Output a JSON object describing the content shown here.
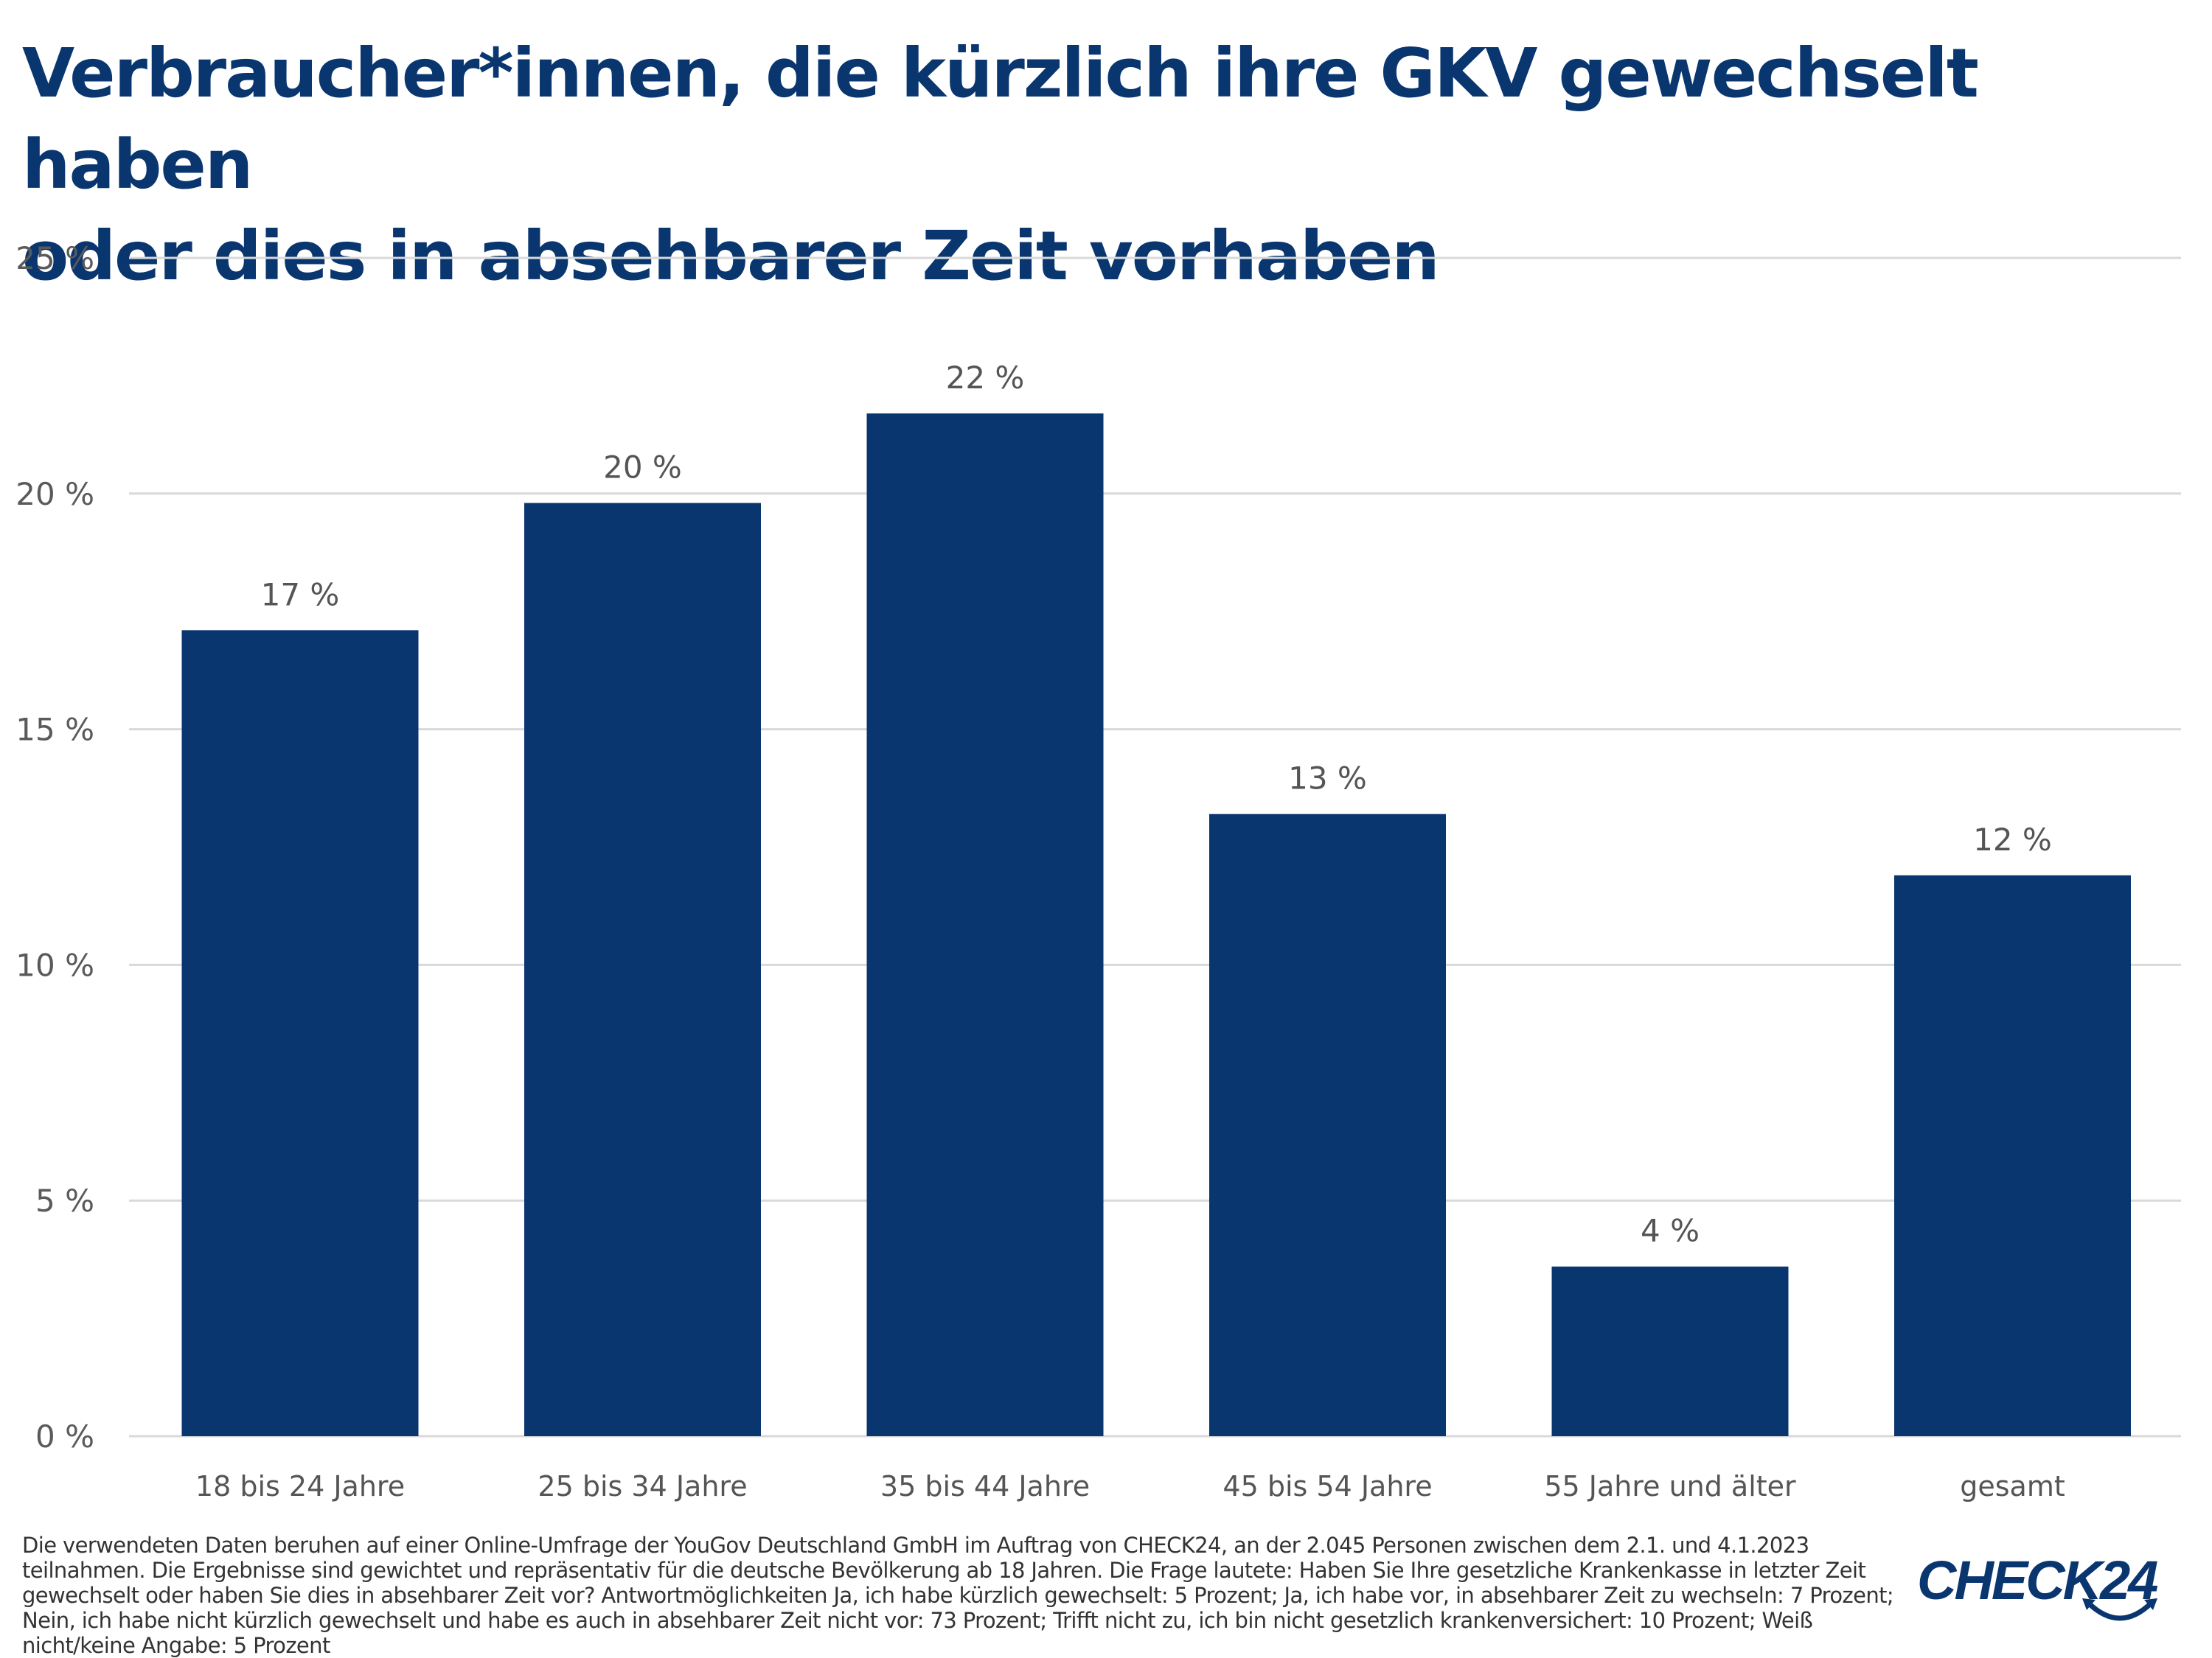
{
  "title": "Verbraucher*innen, die kürzlich ihre GKV gewechselt haben oder dies in absehbarer Zeit vorhaben",
  "title_lines": [
    "Verbraucher*innen, die kürzlich ihre GKV gewechselt haben",
    "oder dies in absehbarer Zeit vorhaben"
  ],
  "colors": {
    "bar": "#0a3670",
    "title": "#0a3670",
    "grid": "#d9d9d9",
    "text": "#555555"
  },
  "chart_data": {
    "type": "bar",
    "title": "Verbraucher*innen, die kürzlich ihre GKV gewechselt haben oder dies in absehbarer Zeit vorhaben",
    "xlabel": "",
    "ylabel": "",
    "categories": [
      "18 bis 24 Jahre",
      "25 bis 34 Jahre",
      "35 bis 44 Jahre",
      "45 bis 54 Jahre",
      "55 Jahre und älter",
      "gesamt"
    ],
    "values": [
      17.1,
      19.8,
      21.7,
      13.2,
      3.6,
      11.9
    ],
    "data_labels": [
      "17 %",
      "20 %",
      "22 %",
      "13 %",
      "4 %",
      "12 %"
    ],
    "ylim": [
      0,
      25
    ],
    "yticks": [
      0,
      5,
      10,
      15,
      20,
      25
    ],
    "ytick_labels": [
      "0 %",
      "5 %",
      "10 %",
      "15 %",
      "20 %",
      "25 %"
    ],
    "grid": true,
    "legend": "none"
  },
  "footnote": "Die verwendeten Daten beruhen auf einer Online-Umfrage der YouGov Deutschland GmbH im Auftrag von CHECK24, an der 2.045 Personen zwischen dem 2.1. und 4.1.2023 teilnahmen. Die Ergebnisse sind gewichtet und repräsentativ für die deutsche Bevölkerung ab 18 Jahren. Die Frage lautete: Haben Sie Ihre gesetzliche Krankenkasse in letzter Zeit gewechselt oder haben Sie dies in absehbarer Zeit vor? Antwortmöglichkeiten Ja, ich habe kürzlich gewechselt: 5 Prozent; Ja, ich habe vor, in absehbarer Zeit zu wechseln: 7 Prozent; Nein, ich habe nicht kürzlich gewechselt und habe es auch in absehbarer Zeit nicht vor: 73 Prozent; Trifft nicht zu, ich bin nicht gesetzlich krankenversichert: 10 Prozent; Weiß nicht/keine Angabe: 5 Prozent",
  "logo": {
    "text": "CHECK24",
    "icon": "smile-arrow-icon"
  }
}
